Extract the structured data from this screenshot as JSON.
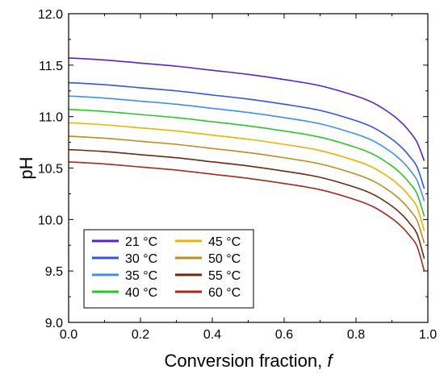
{
  "chart_data": {
    "type": "line",
    "title": "",
    "xlabel": "Conversion fraction, ",
    "xlabel_italic": "f",
    "ylabel": "pH",
    "xlim": [
      0.0,
      1.0
    ],
    "ylim": [
      9.0,
      12.0
    ],
    "x_ticks": [
      "0.0",
      "0.2",
      "0.4",
      "0.6",
      "0.8",
      "1.0"
    ],
    "y_ticks": [
      "9.0",
      "9.5",
      "10.0",
      "10.5",
      "11.0",
      "11.5",
      "12.0"
    ],
    "grid": false,
    "legend_position": "bottom-left",
    "x": [
      0.0,
      0.1,
      0.2,
      0.3,
      0.4,
      0.5,
      0.6,
      0.7,
      0.8,
      0.85,
      0.9,
      0.93,
      0.95,
      0.97,
      0.99
    ],
    "series": [
      {
        "name": "21 °C",
        "color": "#5b1fd6",
        "values": [
          11.57,
          11.55,
          11.52,
          11.49,
          11.45,
          11.41,
          11.36,
          11.3,
          11.2,
          11.13,
          11.02,
          10.93,
          10.85,
          10.75,
          10.57
        ]
      },
      {
        "name": "30 °C",
        "color": "#2f55d9",
        "values": [
          11.33,
          11.31,
          11.28,
          11.25,
          11.21,
          11.17,
          11.12,
          11.06,
          10.96,
          10.89,
          10.78,
          10.69,
          10.61,
          10.51,
          10.3
        ]
      },
      {
        "name": "35 °C",
        "color": "#3b8ff0",
        "values": [
          11.2,
          11.18,
          11.15,
          11.12,
          11.08,
          11.04,
          10.99,
          10.93,
          10.83,
          10.76,
          10.65,
          10.56,
          10.48,
          10.38,
          10.18
        ]
      },
      {
        "name": "40 °C",
        "color": "#2bc52b",
        "values": [
          11.07,
          11.05,
          11.02,
          10.99,
          10.95,
          10.91,
          10.86,
          10.8,
          10.7,
          10.63,
          10.52,
          10.43,
          10.35,
          10.25,
          10.03
        ]
      },
      {
        "name": "45 °C",
        "color": "#e8b400",
        "values": [
          10.94,
          10.92,
          10.89,
          10.86,
          10.82,
          10.78,
          10.73,
          10.67,
          10.57,
          10.5,
          10.39,
          10.3,
          10.22,
          10.12,
          9.89
        ]
      },
      {
        "name": "50 °C",
        "color": "#c08a1e",
        "values": [
          10.81,
          10.79,
          10.76,
          10.73,
          10.69,
          10.65,
          10.6,
          10.54,
          10.44,
          10.37,
          10.26,
          10.17,
          10.09,
          9.99,
          9.77
        ]
      },
      {
        "name": "55 °C",
        "color": "#6b2a0c",
        "values": [
          10.68,
          10.66,
          10.63,
          10.6,
          10.56,
          10.52,
          10.47,
          10.41,
          10.31,
          10.24,
          10.13,
          10.04,
          9.96,
          9.86,
          9.62
        ]
      },
      {
        "name": "60 °C",
        "color": "#a52a1a",
        "values": [
          10.56,
          10.54,
          10.51,
          10.48,
          10.44,
          10.4,
          10.35,
          10.29,
          10.19,
          10.12,
          10.01,
          9.92,
          9.84,
          9.74,
          9.5
        ]
      }
    ]
  }
}
